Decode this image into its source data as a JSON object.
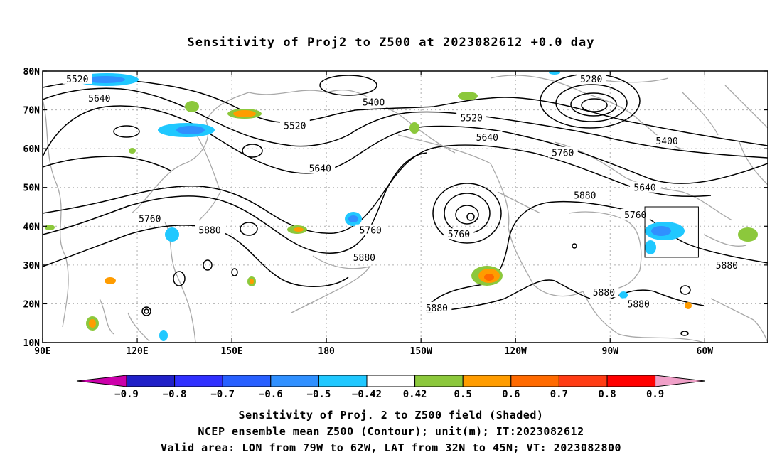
{
  "title": "Sensitivity of Proj2 to Z500 at 2023082612 +0.0 day",
  "lat_labels": [
    "80N",
    "70N",
    "60N",
    "50N",
    "40N",
    "30N",
    "20N",
    "10N"
  ],
  "lat_values": [
    80,
    70,
    60,
    50,
    40,
    30,
    20,
    10
  ],
  "lon_labels": [
    "90E",
    "120E",
    "150E",
    "180",
    "150W",
    "120W",
    "90W",
    "60W"
  ],
  "lon_values": [
    90,
    120,
    150,
    180,
    210,
    240,
    270,
    300
  ],
  "map_extent": {
    "lon_min": 90,
    "lon_max": 320,
    "lat_min": 10,
    "lat_max": 80
  },
  "contour_labels": [
    {
      "text": "5520",
      "lon": 101,
      "lat": 78
    },
    {
      "text": "5640",
      "lon": 108,
      "lat": 73
    },
    {
      "text": "5400",
      "lon": 195,
      "lat": 72
    },
    {
      "text": "5520",
      "lon": 170,
      "lat": 66
    },
    {
      "text": "5280",
      "lon": 264,
      "lat": 78
    },
    {
      "text": "5520",
      "lon": 226,
      "lat": 68
    },
    {
      "text": "5640",
      "lon": 231,
      "lat": 63
    },
    {
      "text": "5760",
      "lon": 255,
      "lat": 59
    },
    {
      "text": "5400",
      "lon": 288,
      "lat": 62
    },
    {
      "text": "5640",
      "lon": 178,
      "lat": 55
    },
    {
      "text": "5640",
      "lon": 281,
      "lat": 50
    },
    {
      "text": "5760",
      "lon": 124,
      "lat": 42
    },
    {
      "text": "5880",
      "lon": 143,
      "lat": 39
    },
    {
      "text": "5760",
      "lon": 194,
      "lat": 39
    },
    {
      "text": "5880",
      "lon": 192,
      "lat": 32
    },
    {
      "text": "5760",
      "lon": 222,
      "lat": 38
    },
    {
      "text": "5880",
      "lon": 262,
      "lat": 48
    },
    {
      "text": "5760",
      "lon": 278,
      "lat": 43
    },
    {
      "text": "5880",
      "lon": 307,
      "lat": 30
    },
    {
      "text": "5880",
      "lon": 268,
      "lat": 23
    },
    {
      "text": "5880",
      "lon": 279,
      "lat": 20
    },
    {
      "text": "5880",
      "lon": 215,
      "lat": 19
    }
  ],
  "colorbar": {
    "labels": [
      "-0.9",
      "-0.8",
      "-0.7",
      "-0.6",
      "-0.5",
      "-0.42",
      "0.42",
      "0.5",
      "0.6",
      "0.7",
      "0.8",
      "0.9"
    ],
    "colors": [
      "#2020c8",
      "#3030ff",
      "#2860ff",
      "#3090ff",
      "#20c8ff",
      "#ffffff",
      "#8cc83c",
      "#ff9c00",
      "#ff6a00",
      "#ff3c14",
      "#ff0000"
    ],
    "low_end_color": "#cc00aa",
    "high_end_color": "#f0a0c8"
  },
  "valid_box": {
    "lon_min": 281,
    "lon_max": 298,
    "lat_min": 32,
    "lat_max": 45
  },
  "captions": [
    "Sensitivity of Proj. 2 to Z500 field (Shaded)",
    "NCEP ensemble mean Z500 (Contour); unit(m); IT:2023082612",
    "Valid area: LON from 79W to 62W, LAT from 32N to 45N; VT: 2023082800"
  ]
}
